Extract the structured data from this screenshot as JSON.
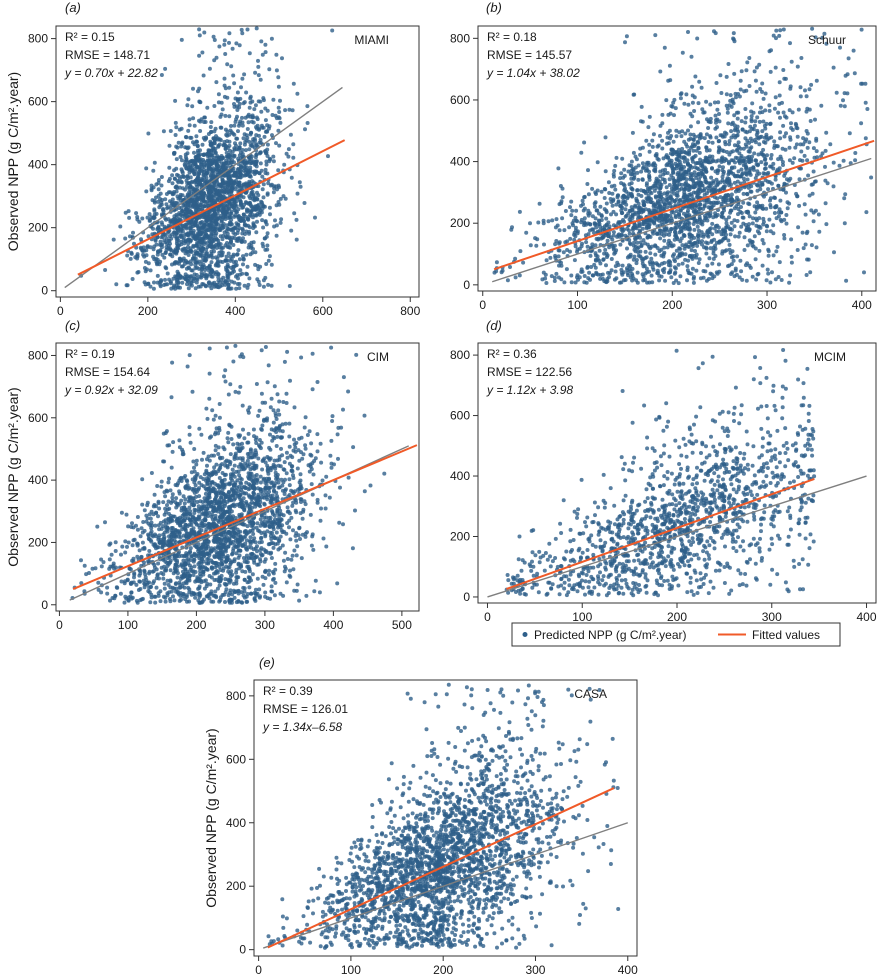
{
  "colors": {
    "points": "#2e5f8a",
    "fitted": "#f05a28",
    "identity": "#7f7f7f",
    "frame": "#333333"
  },
  "legend": {
    "predicted_label": "Predicted NPP (g C/m².year)",
    "fitted_label": "Fitted values"
  },
  "chart_data": [
    {
      "type": "scatter",
      "panel": "(a)",
      "model": "MIAMI",
      "ylabel": "Observed NPP (g C/m².year)",
      "xlim": [
        -10,
        820
      ],
      "ylim": [
        -20,
        840
      ],
      "xticks": [
        0,
        200,
        400,
        600,
        800
      ],
      "yticks": [
        0,
        200,
        400,
        600,
        800
      ],
      "stats": {
        "r2": "R² = 0.15",
        "rmse": "RMSE = 148.71",
        "eq": "y = 0.70x + 22.82"
      },
      "fit": {
        "slope": 0.7,
        "intercept": 22.82,
        "x_range": [
          40,
          650
        ]
      },
      "identity_x_range": [
        10,
        645
      ],
      "points_summary": {
        "x_center": 350,
        "x_spread": 75,
        "x_range": [
          40,
          650
        ],
        "count": 2400
      }
    },
    {
      "type": "scatter",
      "panel": "(b)",
      "model": "Schuur",
      "ylabel": "",
      "xlim": [
        -5,
        415
      ],
      "ylim": [
        -20,
        840
      ],
      "xticks": [
        0,
        100,
        200,
        300,
        400
      ],
      "yticks": [
        0,
        200,
        400,
        600,
        800
      ],
      "stats": {
        "r2": "R² = 0.18",
        "rmse": "RMSE = 145.57",
        "eq": "y = 1.04x + 38.02"
      },
      "fit": {
        "slope": 1.04,
        "intercept": 38.02,
        "x_range": [
          12,
          413
        ]
      },
      "identity_x_range": [
        10,
        410
      ],
      "points_summary": {
        "x_center": 220,
        "x_spread": 70,
        "x_range": [
          10,
          410
        ],
        "count": 2400
      }
    },
    {
      "type": "scatter",
      "panel": "(c)",
      "model": "CIM",
      "ylabel": "Observed NPP (g C/m².year)",
      "xlim": [
        -5,
        525
      ],
      "ylim": [
        -20,
        840
      ],
      "xticks": [
        0,
        100,
        200,
        300,
        400,
        500
      ],
      "yticks": [
        0,
        200,
        400,
        600,
        800
      ],
      "stats": {
        "r2": "R² = 0.19",
        "rmse": "RMSE = 154.64",
        "eq": "y = 0.92x + 32.09"
      },
      "fit": {
        "slope": 0.92,
        "intercept": 32.09,
        "x_range": [
          20,
          522
        ]
      },
      "identity_x_range": [
        15,
        510
      ],
      "points_summary": {
        "x_center": 235,
        "x_spread": 70,
        "x_range": [
          15,
          520
        ],
        "count": 2400
      }
    },
    {
      "type": "scatter",
      "panel": "(d)",
      "model": "MCIM",
      "ylabel": "",
      "xlim": [
        -10,
        410
      ],
      "ylim": [
        -20,
        840
      ],
      "xticks": [
        0,
        100,
        200,
        300,
        400
      ],
      "yticks": [
        0,
        200,
        400,
        600,
        800
      ],
      "stats": {
        "r2": "R² = 0.36",
        "rmse": "RMSE = 122.56",
        "eq": "y = 1.12x + 3.98"
      },
      "fit": {
        "slope": 1.12,
        "intercept": 3.98,
        "x_range": [
          20,
          345
        ]
      },
      "identity_x_range": [
        0,
        400
      ],
      "points_summary": {
        "x_center": 200,
        "x_spread": 80,
        "x_range": [
          20,
          345
        ],
        "count": 1400
      }
    },
    {
      "type": "scatter",
      "panel": "(e)",
      "model": "CASA",
      "ylabel": "Observed NPP (g C/m².year)",
      "xlim": [
        -5,
        410
      ],
      "ylim": [
        -20,
        850
      ],
      "xticks": [
        0,
        100,
        200,
        300,
        400
      ],
      "yticks": [
        0,
        200,
        400,
        600,
        800
      ],
      "stats": {
        "r2": "R² = 0.39",
        "rmse": "RMSE = 126.01",
        "eq": "y = 1.34x–6.58"
      },
      "fit": {
        "slope": 1.34,
        "intercept": -6.58,
        "x_range": [
          10,
          385
        ]
      },
      "identity_x_range": [
        5,
        400
      ],
      "points_summary": {
        "x_center": 200,
        "x_spread": 65,
        "x_range": [
          10,
          390
        ],
        "count": 2400
      }
    }
  ]
}
